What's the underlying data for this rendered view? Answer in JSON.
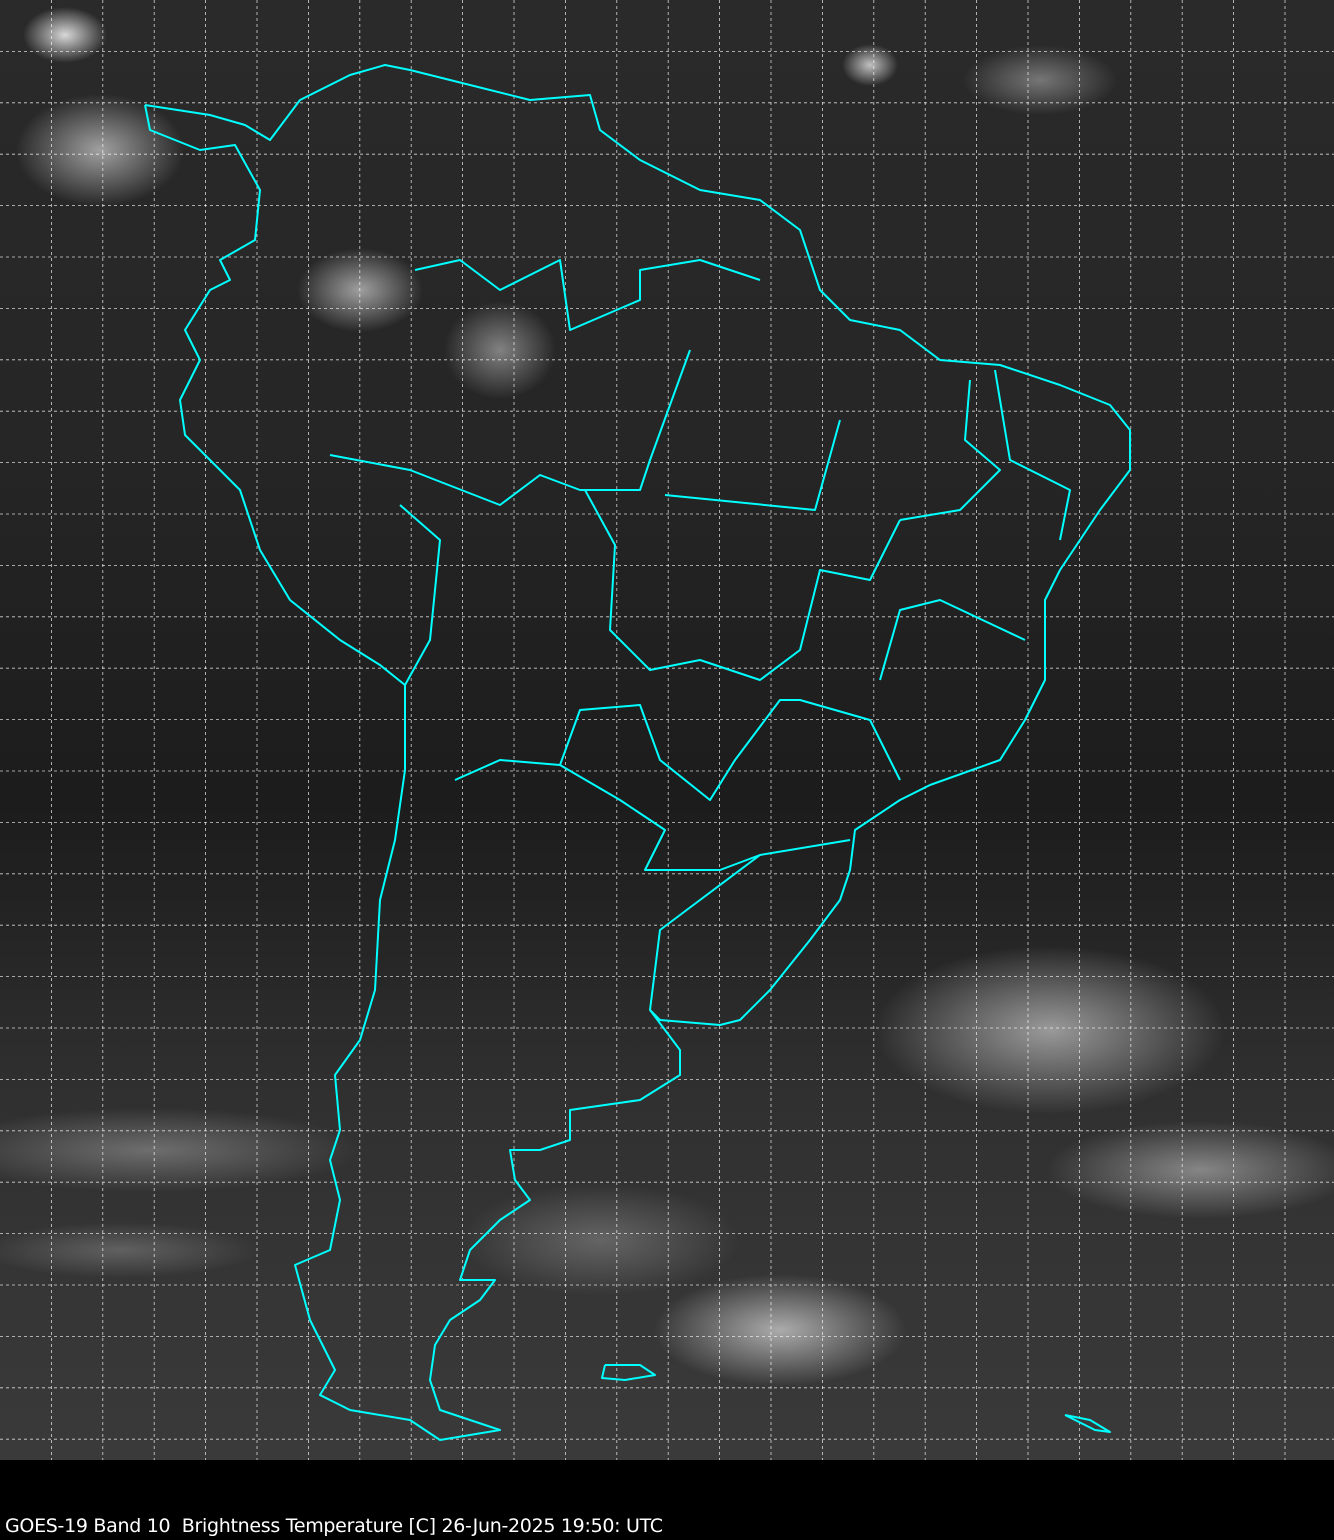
{
  "caption": "GOES-19 Band 10  Brightness Temperature [C] 26-Jun-2025 19:50: UTC",
  "colors": {
    "coastline": "#00ffff",
    "grid": "#ffffff",
    "background": "#000000"
  },
  "map": {
    "projection_grid": "dashed lat/lon graticule",
    "overlay": "country and state borders"
  }
}
